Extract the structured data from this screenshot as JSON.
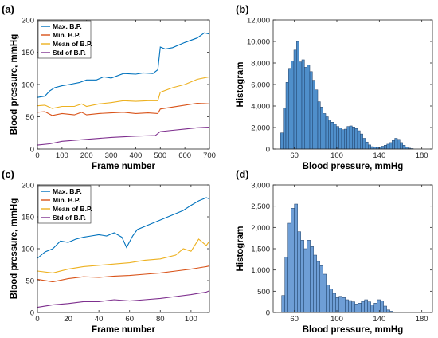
{
  "chart_data": [
    {
      "panel": "(a)",
      "type": "line",
      "xlabel": "Frame number",
      "ylabel": "Blood pressure, mmHg",
      "xlim": [
        0,
        700
      ],
      "ylim": [
        0,
        200
      ],
      "xticks": [
        0,
        100,
        200,
        300,
        400,
        500,
        600,
        700
      ],
      "yticks": [
        0,
        50,
        100,
        150,
        200
      ],
      "grid": false,
      "legend_position": "top-left",
      "series": [
        {
          "name": "Max. B.P.",
          "color": "#0072BD",
          "x": [
            0,
            30,
            50,
            70,
            100,
            130,
            170,
            200,
            240,
            270,
            300,
            350,
            400,
            430,
            470,
            490,
            500,
            520,
            550,
            600,
            650,
            680,
            700
          ],
          "y": [
            80,
            82,
            90,
            95,
            98,
            100,
            103,
            107,
            107,
            112,
            110,
            117,
            116,
            118,
            117,
            123,
            158,
            155,
            157,
            165,
            172,
            180,
            178
          ]
        },
        {
          "name": "Min. B.P.",
          "color": "#D95319",
          "x": [
            0,
            30,
            60,
            100,
            150,
            180,
            200,
            250,
            300,
            350,
            400,
            450,
            490,
            500,
            550,
            600,
            650,
            700
          ],
          "y": [
            57,
            58,
            52,
            55,
            53,
            57,
            53,
            55,
            56,
            57,
            55,
            56,
            55,
            62,
            65,
            68,
            71,
            70
          ]
        },
        {
          "name": "Mean of B.P.",
          "color": "#EDB120",
          "x": [
            0,
            30,
            60,
            100,
            150,
            180,
            200,
            250,
            300,
            350,
            400,
            450,
            490,
            500,
            550,
            600,
            650,
            700
          ],
          "y": [
            67,
            68,
            63,
            66,
            66,
            70,
            66,
            70,
            72,
            75,
            74,
            75,
            75,
            88,
            95,
            100,
            108,
            112
          ]
        },
        {
          "name": "Std of B.P.",
          "color": "#7E2F8E",
          "x": [
            0,
            50,
            100,
            200,
            300,
            400,
            480,
            500,
            550,
            600,
            650,
            700
          ],
          "y": [
            6,
            8,
            12,
            15,
            18,
            20,
            21,
            27,
            29,
            31,
            33,
            34
          ]
        }
      ]
    },
    {
      "panel": "(b)",
      "type": "bar",
      "xlabel": "Blood pressure, mmHg",
      "ylabel": "Histogram",
      "xlim": [
        40,
        190
      ],
      "ylim": [
        0,
        12000
      ],
      "xticks": [
        60,
        100,
        140,
        180
      ],
      "yticks": [
        0,
        2000,
        4000,
        6000,
        8000,
        10000,
        12000
      ],
      "ytick_labels": [
        "0",
        "2,000",
        "4,000",
        "6,000",
        "8,000",
        "10,000",
        "12,000"
      ],
      "bar_color": "#4F8FCB",
      "bin_width": 2.5,
      "bin_start": 47,
      "values": [
        1500,
        3800,
        6200,
        7500,
        8200,
        9200,
        10000,
        8100,
        8300,
        7600,
        7800,
        7200,
        6400,
        5500,
        4400,
        3900,
        3300,
        3000,
        2700,
        2500,
        2300,
        2100,
        1950,
        1800,
        1850,
        2100,
        2150,
        2050,
        1900,
        1700,
        1400,
        1000,
        650,
        380,
        220,
        180,
        160,
        200,
        260,
        350,
        450,
        600,
        800,
        1000,
        900,
        600,
        350,
        180,
        80,
        40
      ]
    },
    {
      "panel": "(c)",
      "type": "line",
      "xlabel": "Frame number",
      "ylabel": "Blood pressure, mmHg",
      "xlim": [
        0,
        112
      ],
      "ylim": [
        0,
        200
      ],
      "xticks": [
        0,
        20,
        40,
        60,
        80,
        100
      ],
      "yticks": [
        0,
        50,
        100,
        150,
        200
      ],
      "grid": false,
      "legend_position": "top-left",
      "series": [
        {
          "name": "Max. B.P.",
          "color": "#0072BD",
          "x": [
            0,
            5,
            10,
            15,
            20,
            25,
            30,
            35,
            40,
            45,
            50,
            55,
            58,
            62,
            65,
            70,
            75,
            80,
            85,
            90,
            95,
            100,
            105,
            110,
            112
          ],
          "y": [
            85,
            95,
            100,
            112,
            110,
            115,
            118,
            120,
            122,
            120,
            125,
            118,
            102,
            120,
            130,
            135,
            140,
            145,
            150,
            155,
            160,
            168,
            175,
            180,
            178
          ]
        },
        {
          "name": "Min. B.P.",
          "color": "#D95319",
          "x": [
            0,
            10,
            20,
            30,
            40,
            50,
            60,
            70,
            80,
            90,
            100,
            105,
            110,
            112
          ],
          "y": [
            52,
            48,
            53,
            56,
            55,
            57,
            58,
            60,
            62,
            65,
            68,
            70,
            72,
            73
          ]
        },
        {
          "name": "Mean of B.P.",
          "color": "#EDB120",
          "x": [
            0,
            10,
            20,
            30,
            40,
            50,
            60,
            70,
            80,
            90,
            95,
            100,
            105,
            110,
            112
          ],
          "y": [
            65,
            62,
            68,
            72,
            74,
            76,
            78,
            82,
            84,
            90,
            100,
            96,
            115,
            105,
            112
          ]
        },
        {
          "name": "Std of B.P.",
          "color": "#7E2F8E",
          "x": [
            0,
            10,
            20,
            30,
            40,
            50,
            60,
            70,
            80,
            90,
            100,
            110,
            112
          ],
          "y": [
            8,
            12,
            14,
            17,
            17,
            20,
            18,
            20,
            22,
            25,
            28,
            32,
            34
          ]
        }
      ]
    },
    {
      "panel": "(d)",
      "type": "bar",
      "xlabel": "Blood pressure, mmHg",
      "ylabel": "Histogram",
      "xlim": [
        40,
        190
      ],
      "ylim": [
        0,
        3000
      ],
      "xticks": [
        60,
        100,
        140,
        180
      ],
      "yticks": [
        0,
        500,
        1000,
        1500,
        2000,
        2500,
        3000
      ],
      "ytick_labels": [
        "0",
        "500",
        "1,000",
        "1,500",
        "2,000",
        "2,500",
        "3,000"
      ],
      "bar_color": "#6E9ED6",
      "bin_width": 3,
      "bin_start": 48,
      "values": [
        400,
        1300,
        2100,
        2450,
        2550,
        1900,
        1700,
        1500,
        1700,
        1550,
        1350,
        1200,
        1100,
        900,
        650,
        550,
        450,
        350,
        380,
        350,
        300,
        280,
        250,
        200,
        220,
        260,
        300,
        250,
        180,
        220,
        300,
        270,
        150,
        60,
        30
      ]
    }
  ]
}
